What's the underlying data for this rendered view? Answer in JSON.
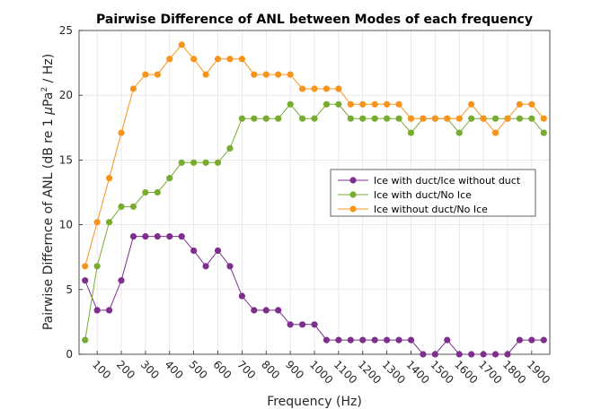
{
  "chart_data": {
    "type": "line",
    "title": "Pairwise Difference of ANL between Modes of each frequency",
    "xlabel": "Frequency (Hz)",
    "ylabel_parts": [
      "Pairwise Differnce of ANL (dB re 1 ",
      "μ",
      "Pa",
      "2",
      " / Hz)"
    ],
    "xlim": [
      25,
      1975
    ],
    "ylim": [
      0,
      25
    ],
    "xticks": [
      100,
      200,
      300,
      400,
      500,
      600,
      700,
      800,
      900,
      1000,
      1100,
      1200,
      1300,
      1400,
      1500,
      1600,
      1700,
      1800,
      1900
    ],
    "yticks": [
      0,
      5,
      10,
      15,
      20,
      25
    ],
    "grid": true,
    "legend_position": "center-right",
    "x": [
      50,
      100,
      150,
      200,
      250,
      300,
      350,
      400,
      450,
      500,
      550,
      600,
      650,
      700,
      750,
      800,
      850,
      900,
      950,
      1000,
      1050,
      1100,
      1150,
      1200,
      1250,
      1300,
      1350,
      1400,
      1450,
      1500,
      1550,
      1600,
      1650,
      1700,
      1750,
      1800,
      1850,
      1900,
      1950
    ],
    "series": [
      {
        "name": "Ice with duct/Ice without duct",
        "color": "#7e2f8e",
        "values": [
          5.7,
          3.4,
          3.4,
          5.7,
          9.1,
          9.1,
          9.1,
          9.1,
          9.1,
          8.0,
          6.8,
          8.0,
          6.8,
          4.5,
          3.4,
          3.4,
          3.4,
          2.3,
          2.3,
          2.3,
          1.1,
          1.1,
          1.1,
          1.1,
          1.1,
          1.1,
          1.1,
          1.1,
          0.0,
          0.0,
          1.1,
          0.0,
          0.0,
          0.0,
          0.0,
          0.0,
          1.1,
          1.1,
          1.1
        ]
      },
      {
        "name": "Ice with duct/No Ice",
        "color": "#77ac30",
        "values": [
          1.1,
          6.8,
          10.2,
          11.4,
          11.4,
          12.5,
          12.5,
          13.6,
          14.8,
          14.8,
          14.8,
          14.8,
          15.9,
          18.2,
          18.2,
          18.2,
          18.2,
          19.3,
          18.2,
          18.2,
          19.3,
          19.3,
          18.2,
          18.2,
          18.2,
          18.2,
          18.2,
          17.1,
          18.2,
          18.2,
          18.2,
          17.1,
          18.2,
          18.2,
          18.2,
          18.2,
          18.2,
          18.2,
          17.1
        ]
      },
      {
        "name": "Ice without duct/No Ice",
        "color": "#f7941d",
        "values": [
          6.8,
          10.2,
          13.6,
          17.1,
          20.5,
          21.6,
          21.6,
          22.8,
          23.9,
          22.8,
          21.6,
          22.8,
          22.8,
          22.8,
          21.6,
          21.6,
          21.6,
          21.6,
          20.5,
          20.5,
          20.5,
          20.5,
          19.3,
          19.3,
          19.3,
          19.3,
          19.3,
          18.2,
          18.2,
          18.2,
          18.2,
          18.2,
          19.3,
          18.2,
          17.1,
          18.2,
          19.3,
          19.3,
          18.2
        ]
      }
    ]
  }
}
